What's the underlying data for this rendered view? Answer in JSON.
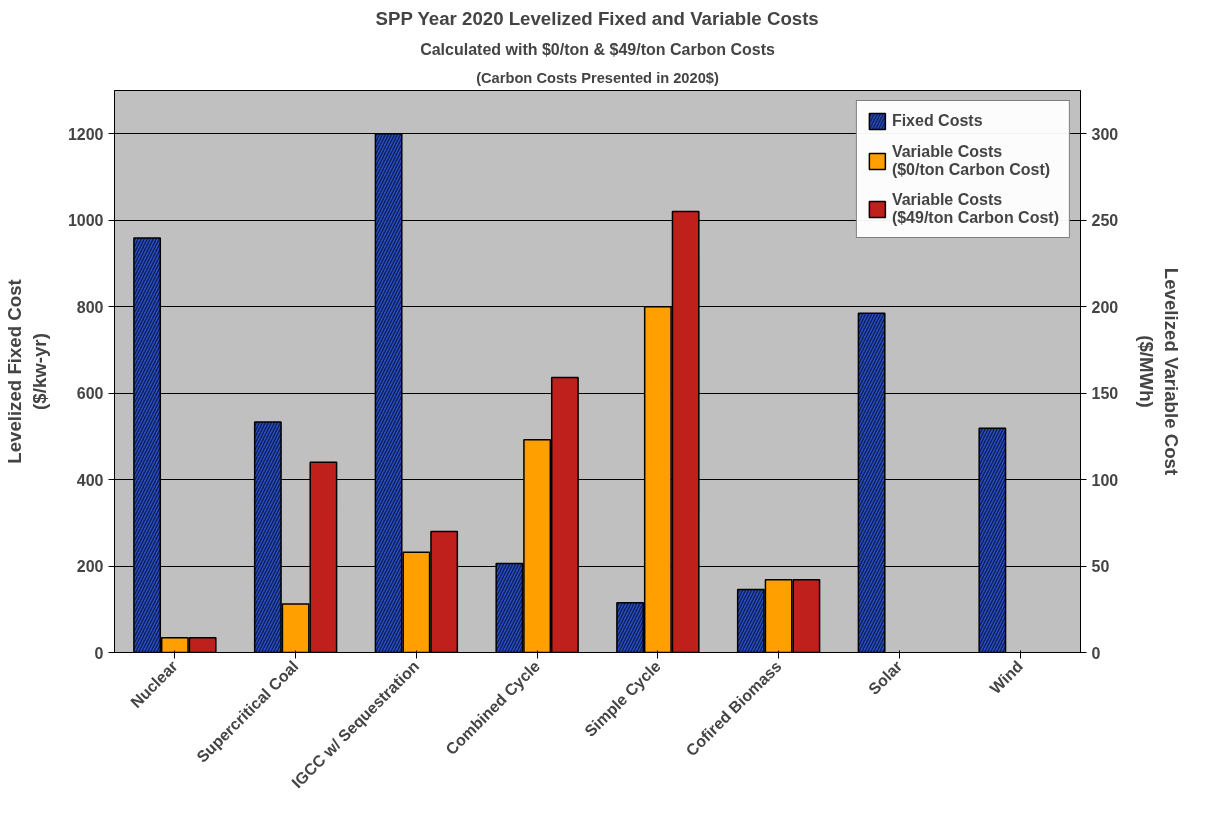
{
  "chart_data": {
    "type": "bar",
    "title": "SPP Year 2020 Levelized Fixed and Variable Costs",
    "subtitle": "Calculated with $0/ton & $49/ton Carbon Costs",
    "annotations": [
      "(Carbon Costs Presented in 2020$)"
    ],
    "ylabel": "Levelized Fixed Cost\n($/kw-yr)",
    "y2label": "Levelized Variable Cost\n($/MWh)",
    "categories": [
      "Nuclear",
      "Supercritical Coal",
      "IGCC w/ Sequestration",
      "Combined Cycle",
      "Simple Cycle",
      "Cofired Biomass",
      "Solar",
      "Wind"
    ],
    "series": [
      {
        "name": "Fixed Costs",
        "color": "#2850c8",
        "values": [
          959,
          533,
          1200,
          206,
          115,
          146,
          785,
          519
        ]
      },
      {
        "name": "Variable Costs\n($0/ton Carbon Cost)",
        "color": "#ffa000",
        "axis": "y2",
        "values": [
          8.5,
          28,
          58,
          123,
          200,
          42,
          null,
          null
        ]
      },
      {
        "name": "Variable Costs\n($49/ton Carbon Cost)",
        "color": "#c0201c",
        "axis": "y2",
        "values": [
          8.5,
          110,
          70,
          159,
          255,
          42,
          null,
          null
        ]
      }
    ],
    "ylim": [
      0,
      1300
    ],
    "yticks": [
      0,
      200,
      400,
      600,
      800,
      1000,
      1200
    ],
    "y2lim": [
      0,
      325
    ],
    "y2ticks": [
      0,
      50,
      100,
      150,
      200,
      250,
      300
    ],
    "grid": "y",
    "legend": "top right"
  }
}
